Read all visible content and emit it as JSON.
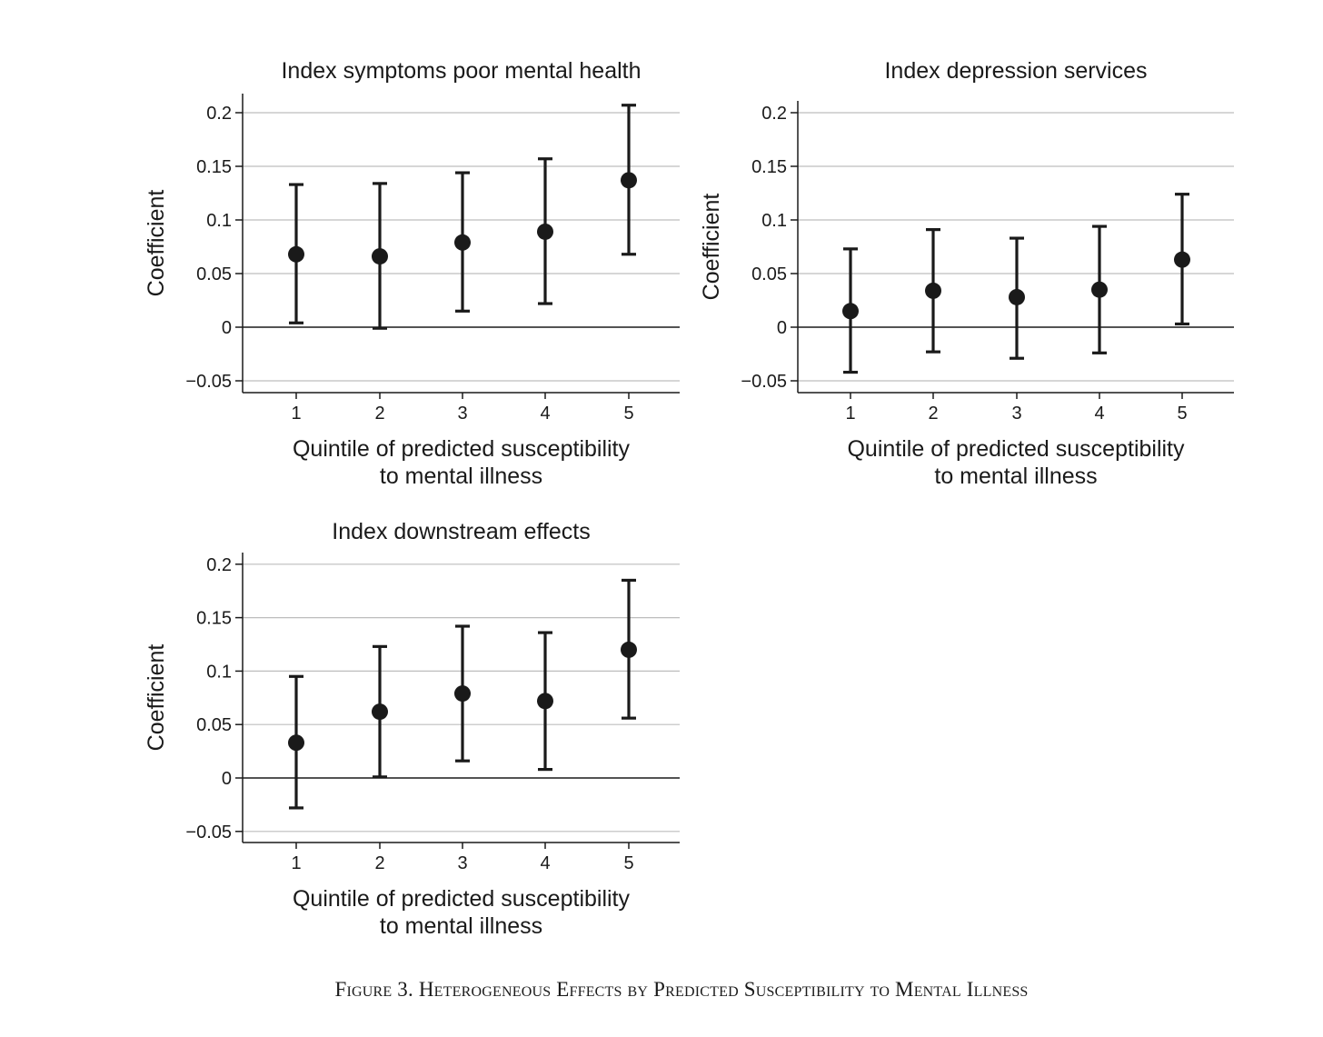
{
  "caption": "Figure 3. Heterogeneous Effects by Predicted Susceptibility to Mental Illness",
  "chart_data": [
    {
      "type": "scatter",
      "title": "Index symptoms poor mental health",
      "xlabel": [
        "Quintile of predicted susceptibility",
        "to mental illness"
      ],
      "ylabel": "Coefficient",
      "categories": [
        1,
        2,
        3,
        4,
        5
      ],
      "values": [
        0.068,
        0.066,
        0.079,
        0.089,
        0.137
      ],
      "ci_low": [
        0.004,
        -0.001,
        0.015,
        0.022,
        0.068
      ],
      "ci_high": [
        0.133,
        0.134,
        0.144,
        0.157,
        0.207
      ],
      "ylim": [
        -0.06,
        0.22
      ],
      "yticks": [
        -0.05,
        0,
        0.05,
        0.1,
        0.15,
        0.2
      ],
      "ytick_labels": [
        "−0.05",
        "0",
        "0.05",
        "0.1",
        "0.15",
        "0.2"
      ],
      "grid": true,
      "zero_line": true
    },
    {
      "type": "scatter",
      "title": "Index depression services",
      "xlabel": [
        "Quintile of predicted susceptibility",
        "to mental illness"
      ],
      "ylabel": "Coefficient",
      "categories": [
        1,
        2,
        3,
        4,
        5
      ],
      "values": [
        0.015,
        0.034,
        0.028,
        0.035,
        0.063
      ],
      "ci_low": [
        -0.042,
        -0.023,
        -0.029,
        -0.024,
        0.003
      ],
      "ci_high": [
        0.073,
        0.091,
        0.083,
        0.094,
        0.124
      ],
      "ylim": [
        -0.06,
        0.21
      ],
      "yticks": [
        -0.05,
        0,
        0.05,
        0.1,
        0.15,
        0.2
      ],
      "ytick_labels": [
        "−0.05",
        "0",
        "0.05",
        "0.1",
        "0.15",
        "0.2"
      ],
      "grid": true,
      "zero_line": true
    },
    {
      "type": "scatter",
      "title": "Index downstream effects",
      "xlabel": [
        "Quintile of predicted susceptibility",
        "to mental illness"
      ],
      "ylabel": "Coefficient",
      "categories": [
        1,
        2,
        3,
        4,
        5
      ],
      "values": [
        0.033,
        0.062,
        0.079,
        0.072,
        0.12
      ],
      "ci_low": [
        -0.028,
        0.001,
        0.016,
        0.008,
        0.056
      ],
      "ci_high": [
        0.095,
        0.123,
        0.142,
        0.136,
        0.185
      ],
      "ylim": [
        -0.06,
        0.21
      ],
      "yticks": [
        -0.05,
        0,
        0.05,
        0.1,
        0.15,
        0.2
      ],
      "ytick_labels": [
        "−0.05",
        "0",
        "0.05",
        "0.1",
        "0.15",
        "0.2"
      ],
      "grid": true,
      "zero_line": true
    }
  ]
}
